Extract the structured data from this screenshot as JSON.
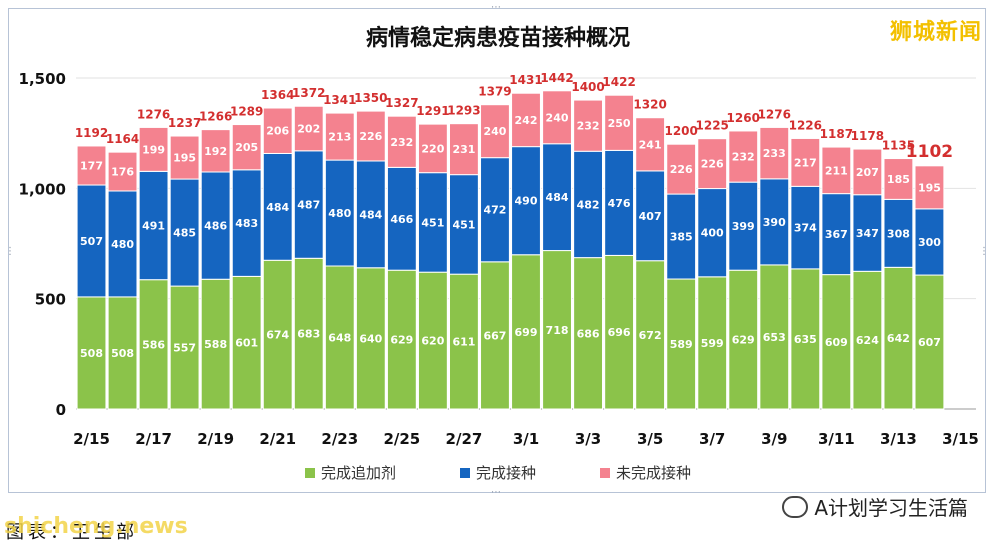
{
  "header": {
    "title": "病情稳定病患疫苗接种概况",
    "brand": "狮城新闻"
  },
  "footer": {
    "wechat": "A计划学习生活篇",
    "source": "图表：卫生部",
    "watermark": "shicheng.news"
  },
  "colors": {
    "booster": "#8bc34a",
    "completed": "#1565c0",
    "incomplete": "#f4828f",
    "total_label": "#d32f2f"
  },
  "chart_data": {
    "type": "bar",
    "stacked": true,
    "title": "病情稳定病患疫苗接种概况",
    "categories": [
      "2/15",
      "2/16",
      "2/17",
      "2/18",
      "2/19",
      "2/20",
      "2/21",
      "2/22",
      "2/23",
      "2/24",
      "2/25",
      "2/26",
      "2/27",
      "2/28",
      "3/1",
      "3/2",
      "3/3",
      "3/4",
      "3/5",
      "3/6",
      "3/7",
      "3/8",
      "3/9",
      "3/10",
      "3/11",
      "3/12",
      "3/13",
      "3/14"
    ],
    "x_tick_labels": [
      "2/15",
      "2/17",
      "2/19",
      "2/21",
      "2/23",
      "2/25",
      "2/27",
      "3/1",
      "3/3",
      "3/5",
      "3/7",
      "3/9",
      "3/11",
      "3/13",
      "3/15"
    ],
    "series": [
      {
        "name": "完成追加剂",
        "color": "#8bc34a",
        "values": [
          508,
          508,
          586,
          557,
          588,
          601,
          674,
          683,
          648,
          640,
          629,
          620,
          611,
          667,
          699,
          718,
          686,
          696,
          672,
          589,
          599,
          629,
          653,
          635,
          609,
          624,
          642,
          607
        ]
      },
      {
        "name": "完成接种",
        "color": "#1565c0",
        "values": [
          507,
          480,
          491,
          485,
          486,
          483,
          484,
          487,
          480,
          484,
          466,
          451,
          451,
          472,
          490,
          484,
          482,
          476,
          407,
          385,
          400,
          399,
          390,
          374,
          367,
          347,
          308,
          300
        ]
      },
      {
        "name": "未完成接种",
        "color": "#f4828f",
        "values": [
          177,
          176,
          199,
          195,
          192,
          205,
          206,
          202,
          213,
          226,
          232,
          220,
          231,
          240,
          242,
          240,
          232,
          250,
          241,
          226,
          226,
          232,
          233,
          217,
          211,
          207,
          185,
          195
        ]
      }
    ],
    "totals": [
      1192,
      1164,
      1276,
      1237,
      1266,
      1289,
      1364,
      1372,
      1341,
      1350,
      1327,
      1291,
      1293,
      1379,
      1431,
      1442,
      1400,
      1422,
      1320,
      1200,
      1225,
      1260,
      1276,
      1226,
      1187,
      1178,
      1135,
      1102
    ],
    "y_ticks": [
      0,
      500,
      1000,
      1500
    ],
    "y_tick_labels": [
      "0",
      "500",
      "1,000",
      "1,500"
    ],
    "ylim": [
      0,
      1500
    ],
    "grid": true,
    "legend_position": "bottom"
  }
}
